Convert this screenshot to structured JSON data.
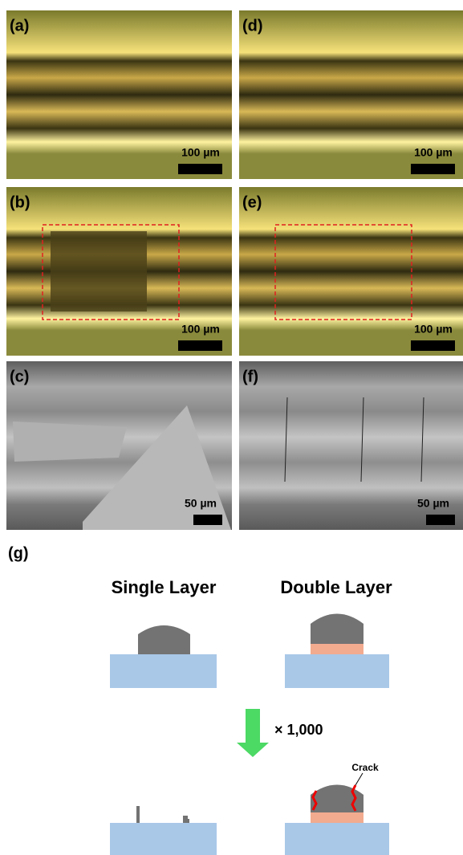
{
  "panels": [
    {
      "label": "(a)",
      "scale_bar": "100 µm"
    },
    {
      "label": "(b)",
      "scale_bar": "100 µm"
    },
    {
      "label": "(c)",
      "scale_bar": "50 µm"
    },
    {
      "label": "(d)",
      "scale_bar": "100 µm"
    },
    {
      "label": "(e)",
      "scale_bar": "100 µm"
    },
    {
      "label": "(f)",
      "scale_bar": "50 µm"
    }
  ],
  "schematic": {
    "label": "(g)",
    "columns": [
      "Single Layer",
      "Double Layer"
    ],
    "step": "× 1,000",
    "annotation": "Crack"
  }
}
